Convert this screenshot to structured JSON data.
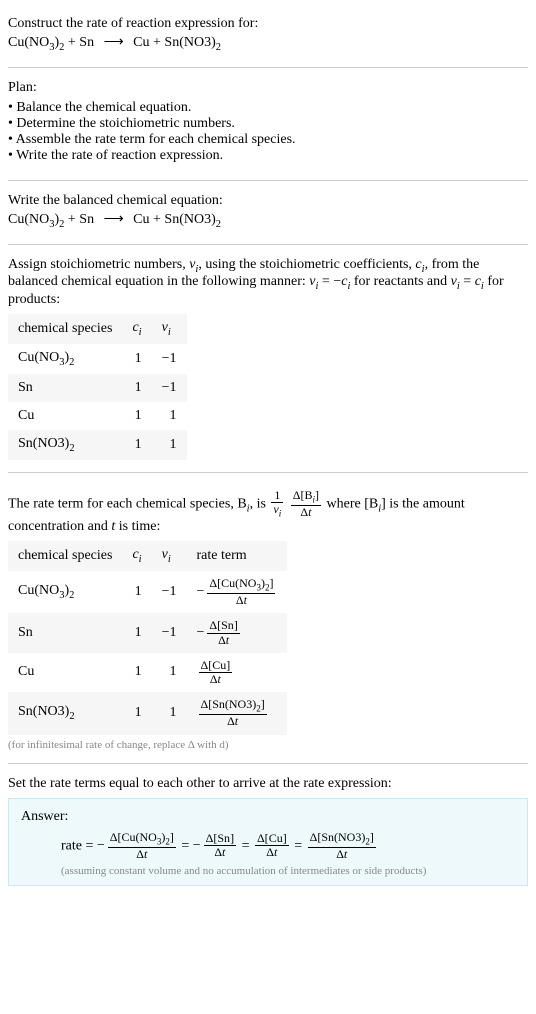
{
  "prompt": {
    "line1": "Construct the rate of reaction expression for:",
    "eq_lhs1": "Cu(NO",
    "eq_lhs1_sub1": "3",
    "eq_lhs1_close": ")",
    "eq_lhs1_sub2": "2",
    "plus1": " + Sn ",
    "arrow": "⟶",
    "eq_rhs": " Cu + Sn(NO3)",
    "eq_rhs_sub": "2"
  },
  "plan": {
    "title": "Plan:",
    "items": [
      "Balance the chemical equation.",
      "Determine the stoichiometric numbers.",
      "Assemble the rate term for each chemical species.",
      "Write the rate of reaction expression."
    ]
  },
  "balanced": {
    "title": "Write the balanced chemical equation:"
  },
  "assign": {
    "text1": "Assign stoichiometric numbers, ",
    "vi": "ν",
    "vi_sub": "i",
    "text2": ", using the stoichiometric coefficients, ",
    "ci": "c",
    "ci_sub": "i",
    "text3": ", from the balanced chemical equation in the following manner: ",
    "eq_react": " = −",
    "text4": " for reactants and ",
    "eq_prod": " = ",
    "text5": " for products:"
  },
  "table1": {
    "headers": {
      "species": "chemical species",
      "ci": "c",
      "ci_sub": "i",
      "vi": "ν",
      "vi_sub": "i"
    },
    "rows": [
      {
        "species_pre": "Cu(NO",
        "species_sub1": "3",
        "species_mid": ")",
        "species_sub2": "2",
        "ci": "1",
        "vi": "−1"
      },
      {
        "species_pre": "Sn",
        "species_sub1": "",
        "species_mid": "",
        "species_sub2": "",
        "ci": "1",
        "vi": "−1"
      },
      {
        "species_pre": "Cu",
        "species_sub1": "",
        "species_mid": "",
        "species_sub2": "",
        "ci": "1",
        "vi": "1"
      },
      {
        "species_pre": "Sn(NO3)",
        "species_sub1": "",
        "species_mid": "",
        "species_sub2": "2",
        "ci": "1",
        "vi": "1"
      }
    ]
  },
  "rate_intro": {
    "text1": "The rate term for each chemical species, B",
    "bi_sub": "i",
    "text2": ", is ",
    "frac1_num": "1",
    "frac1_den_v": "ν",
    "frac1_den_sub": "i",
    "frac2_num_d": "Δ[B",
    "frac2_num_sub": "i",
    "frac2_num_close": "]",
    "frac2_den_d": "Δ",
    "frac2_den_t": "t",
    "text3": " where [B",
    "text3_sub": "i",
    "text4": "] is the amount concentration and ",
    "t": "t",
    "text5": " is time:"
  },
  "table2": {
    "headers": {
      "species": "chemical species",
      "ci": "c",
      "ci_sub": "i",
      "vi": "ν",
      "vi_sub": "i",
      "rate": "rate term"
    },
    "dBracket_open": "Δ[",
    "dBracket_close": "]",
    "dt_d": "Δ",
    "dt_t": "t",
    "minus": "−",
    "rows": [
      {
        "sp_pre": "Cu(NO",
        "sp_s1": "3",
        "sp_mid": ")",
        "sp_s2": "2",
        "ci": "1",
        "vi": "−1",
        "neg": true,
        "conc_pre": "Cu(NO",
        "conc_s1": "3",
        "conc_mid": ")",
        "conc_s2": "2"
      },
      {
        "sp_pre": "Sn",
        "sp_s1": "",
        "sp_mid": "",
        "sp_s2": "",
        "ci": "1",
        "vi": "−1",
        "neg": true,
        "conc_pre": "Sn",
        "conc_s1": "",
        "conc_mid": "",
        "conc_s2": ""
      },
      {
        "sp_pre": "Cu",
        "sp_s1": "",
        "sp_mid": "",
        "sp_s2": "",
        "ci": "1",
        "vi": "1",
        "neg": false,
        "conc_pre": "Cu",
        "conc_s1": "",
        "conc_mid": "",
        "conc_s2": ""
      },
      {
        "sp_pre": "Sn(NO3)",
        "sp_s1": "",
        "sp_mid": "",
        "sp_s2": "2",
        "ci": "1",
        "vi": "1",
        "neg": false,
        "conc_pre": "Sn(NO3)",
        "conc_s1": "",
        "conc_mid": "",
        "conc_s2": "2"
      }
    ],
    "caption": "(for infinitesimal rate of change, replace Δ with d)"
  },
  "set_terms": "Set the rate terms equal to each other to arrive at the rate expression:",
  "answer": {
    "label": "Answer:",
    "rate_eq": "rate = ",
    "minus": "−",
    "eq": " = ",
    "terms": [
      {
        "neg": true,
        "pre": "Cu(NO",
        "s1": "3",
        "mid": ")",
        "s2": "2"
      },
      {
        "neg": true,
        "pre": "Sn",
        "s1": "",
        "mid": "",
        "s2": ""
      },
      {
        "neg": false,
        "pre": "Cu",
        "s1": "",
        "mid": "",
        "s2": ""
      },
      {
        "neg": false,
        "pre": "Sn(NO3)",
        "s1": "",
        "mid": "",
        "s2": "2"
      }
    ],
    "note": "(assuming constant volume and no accumulation of intermediates or side products)"
  },
  "colors": {
    "answer_bg": "#eef9fb",
    "answer_border": "#cde8ee",
    "caption": "#888888",
    "row_alt": "#f6f6f6"
  }
}
